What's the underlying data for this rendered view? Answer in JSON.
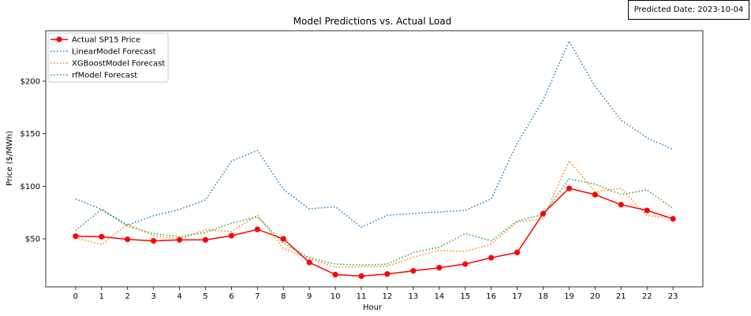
{
  "annotation": {
    "predicted_date": "Predicted Date: 2023-10-04"
  },
  "chart_data": {
    "type": "line",
    "title": "Model Predictions vs. Actual Load",
    "xlabel": "Hour",
    "ylabel": "Price ($/MWh)",
    "x": [
      0,
      1,
      2,
      3,
      4,
      5,
      6,
      7,
      8,
      9,
      10,
      11,
      12,
      13,
      14,
      15,
      16,
      17,
      18,
      19,
      20,
      21,
      22,
      23
    ],
    "xlim": [
      -1.15,
      24.15
    ],
    "ylim": [
      4.3,
      248
    ],
    "yticks": [
      50,
      100,
      150,
      200
    ],
    "ytick_labels": [
      "$50",
      "$100",
      "$150",
      "$200"
    ],
    "xtick_labels": [
      "0",
      "1",
      "2",
      "3",
      "4",
      "5",
      "6",
      "7",
      "8",
      "9",
      "10",
      "11",
      "12",
      "13",
      "14",
      "15",
      "16",
      "17",
      "18",
      "19",
      "20",
      "21",
      "22",
      "23"
    ],
    "grid": false,
    "legend_position": "top-left",
    "series": [
      {
        "name": "Actual SP15 Price",
        "color": "#ff0000",
        "style": "solid-markers",
        "values": [
          52.5,
          52,
          49.5,
          48,
          49,
          49,
          53,
          59,
          50,
          27.5,
          16,
          14.5,
          16.5,
          19.5,
          22.5,
          26,
          32,
          37,
          74,
          98,
          92,
          82.5,
          77,
          69
        ]
      },
      {
        "name": "LinearModel Forecast",
        "color": "#1f77b4",
        "style": "dotted",
        "values": [
          88,
          78,
          63,
          72,
          78,
          87,
          124,
          134,
          97,
          78.5,
          80.5,
          61,
          72.5,
          74,
          75.5,
          77,
          88,
          141,
          182,
          238,
          195,
          163,
          146,
          135
        ]
      },
      {
        "name": "XGBoostModel Forecast",
        "color": "#ff7f0e",
        "style": "dotted",
        "values": [
          51,
          44.5,
          64,
          53,
          50,
          58.5,
          57,
          72.5,
          41,
          31,
          23,
          23.5,
          24,
          32.5,
          39,
          38,
          45,
          66,
          69,
          124,
          95,
          98,
          72,
          70
        ]
      },
      {
        "name": "rfModel Forecast",
        "color": "#2ca02c",
        "style": "dotted",
        "values": [
          58,
          78,
          62,
          55,
          52,
          56,
          65,
          71,
          46,
          32,
          26,
          25,
          26,
          37,
          42,
          55,
          48,
          67,
          73,
          107,
          102,
          92,
          96.5,
          79
        ]
      }
    ]
  }
}
